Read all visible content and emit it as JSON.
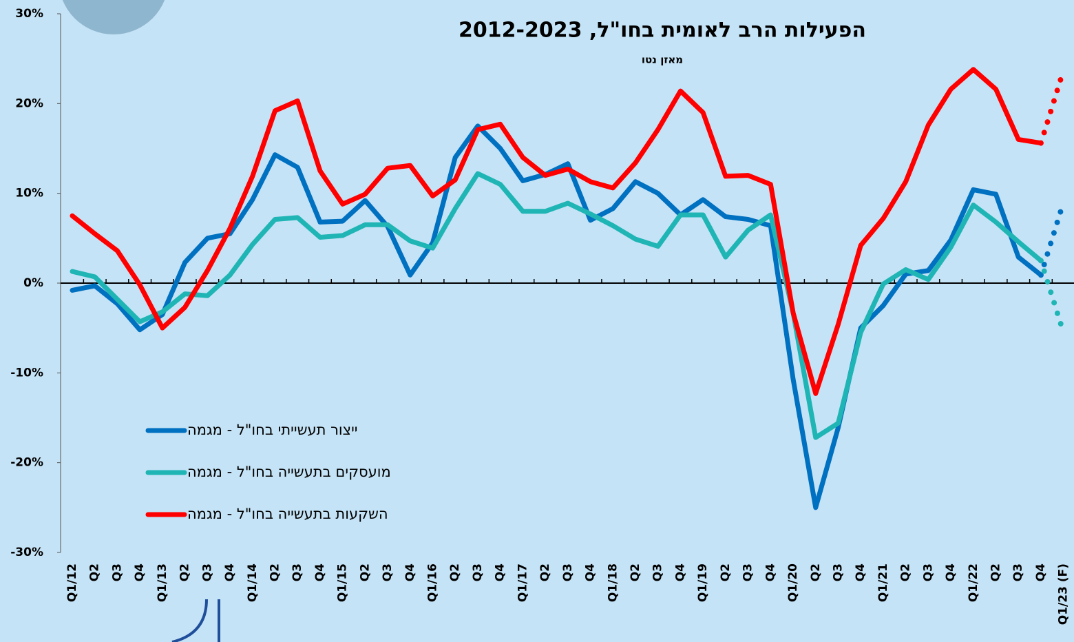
{
  "chart_data": {
    "type": "line",
    "title": "הפעילות הרב לאומית בחו\"ל, 2012-2023",
    "subtitle": "מאזן נטו",
    "categories": [
      "Q1/12",
      "Q2",
      "Q3",
      "Q4",
      "Q1/13",
      "Q2",
      "Q3",
      "Q4",
      "Q1/14",
      "Q2",
      "Q3",
      "Q4",
      "Q1/15",
      "Q2",
      "Q3",
      "Q4",
      "Q1/16",
      "Q2",
      "Q3",
      "Q4",
      "Q1/17",
      "Q2",
      "Q3",
      "Q4",
      "Q1/18",
      "Q2",
      "Q3",
      "Q4",
      "Q1/19",
      "Q2",
      "Q3",
      "Q4",
      "Q1/20",
      "Q2",
      "Q3",
      "Q4",
      "Q1/21",
      "Q2",
      "Q3",
      "Q4",
      "Q1/22",
      "Q2",
      "Q3",
      "Q4",
      "Q1/23 (F)"
    ],
    "series": [
      {
        "name": "ייצור תעשייתי בחו\"ל - מגמה",
        "color": "#0070c0",
        "values": [
          -0.8,
          -0.3,
          -2.3,
          -5.2,
          -3.5,
          2.3,
          5.0,
          5.5,
          9.3,
          14.3,
          12.9,
          6.8,
          6.9,
          9.2,
          6.3,
          0.9,
          4.5,
          14.0,
          17.5,
          15.0,
          11.4,
          12.1,
          13.3,
          7.0,
          8.3,
          11.3,
          10.0,
          7.6,
          9.3,
          7.4,
          7.1,
          6.4,
          -10.7,
          -25.0,
          -16.1,
          -5.0,
          -2.5,
          1.0,
          1.4,
          4.8,
          10.4,
          9.9,
          2.9,
          0.9,
          9.0
        ]
      },
      {
        "name": "מועסקים בתעשייה בחו\"ל - מגמה",
        "color": "#1fb5b5",
        "values": [
          1.3,
          0.7,
          -1.8,
          -4.3,
          -3.2,
          -1.2,
          -1.4,
          0.9,
          4.3,
          7.1,
          7.3,
          5.1,
          5.3,
          6.5,
          6.5,
          4.7,
          3.9,
          8.3,
          12.2,
          11.0,
          8.0,
          8.0,
          8.9,
          7.7,
          6.4,
          4.9,
          4.1,
          7.6,
          7.6,
          2.9,
          5.9,
          7.6,
          -3.3,
          -17.2,
          -15.6,
          -5.5,
          -0.1,
          1.5,
          0.4,
          4.0,
          8.7,
          6.8,
          4.6,
          2.5,
          -5.5
        ]
      },
      {
        "name": "השקעות בתעשייה בחו\"ל - מגמה",
        "color": "#ff0000",
        "values": [
          7.5,
          5.5,
          3.6,
          -0.2,
          -5.0,
          -2.7,
          1.4,
          6.1,
          11.9,
          19.2,
          20.3,
          12.5,
          8.8,
          9.9,
          12.8,
          13.1,
          9.7,
          11.5,
          17.1,
          17.7,
          14.0,
          12.0,
          12.7,
          11.3,
          10.6,
          13.4,
          17.1,
          21.4,
          19.0,
          11.9,
          12.0,
          11.0,
          -3.3,
          -12.3,
          -4.6,
          4.2,
          7.2,
          11.3,
          17.6,
          21.6,
          23.8,
          21.6,
          16.0,
          15.6,
          23.7
        ]
      }
    ],
    "forecast_dotted": true,
    "ylim": [
      -30,
      30
    ],
    "yticks": [
      {
        "value": -30,
        "label": "-30%"
      },
      {
        "value": -20,
        "label": "-20%"
      },
      {
        "value": -10,
        "label": "-10%"
      },
      {
        "value": 0,
        "label": "0%"
      },
      {
        "value": 10,
        "label": "10%"
      },
      {
        "value": 20,
        "label": "20%"
      },
      {
        "value": 30,
        "label": "30%"
      }
    ]
  }
}
